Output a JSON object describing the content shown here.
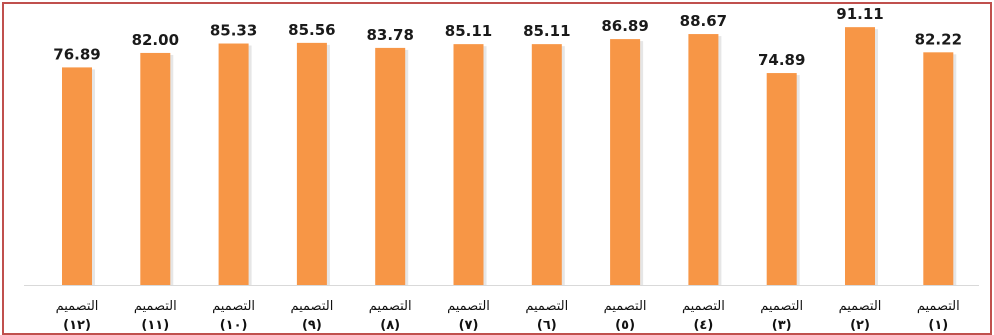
{
  "chart_data": {
    "type": "bar",
    "categories": [
      {
        "line1": "التصميم",
        "line2": "(١٢)"
      },
      {
        "line1": "التصميم",
        "line2": "(١١)"
      },
      {
        "line1": "التصميم",
        "line2": "(١٠)"
      },
      {
        "line1": "التصميم",
        "line2": "(٩)"
      },
      {
        "line1": "التصميم",
        "line2": "(٨)"
      },
      {
        "line1": "التصميم",
        "line2": "(٧)"
      },
      {
        "line1": "التصميم",
        "line2": "(٦)"
      },
      {
        "line1": "التصميم",
        "line2": "(٥)"
      },
      {
        "line1": "التصميم",
        "line2": "(٤)"
      },
      {
        "line1": "التصميم",
        "line2": "(٣)"
      },
      {
        "line1": "التصميم",
        "line2": "(٢)"
      },
      {
        "line1": "التصميم",
        "line2": "(١)"
      }
    ],
    "values": [
      "76.89",
      "82.00",
      "85.33",
      "85.56",
      "83.78",
      "85.11",
      "85.11",
      "86.89",
      "88.67",
      "74.89",
      "91.11",
      "82.22"
    ],
    "ylim": [
      0,
      100
    ],
    "grid": false,
    "bar_color": "#f79646",
    "frame_color": "#c0504d"
  }
}
